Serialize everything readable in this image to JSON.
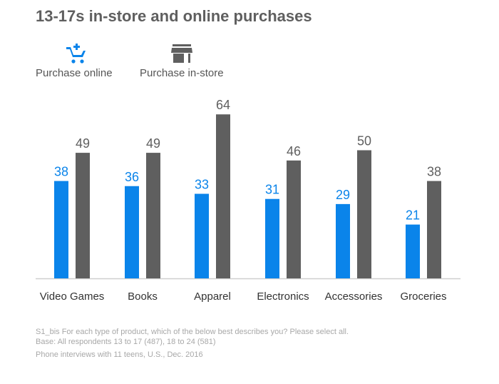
{
  "title": "13-17s in-store and online purchases",
  "legend": [
    {
      "label": "Purchase online",
      "icon": "cart-add-icon",
      "color": "#0a84ea"
    },
    {
      "label": "Purchase in-store",
      "icon": "storefront-icon",
      "color": "#5f5f5f"
    }
  ],
  "chart_data": {
    "type": "bar",
    "title": "13-17s in-store and online purchases",
    "categories": [
      "Video Games",
      "Books",
      "Apparel",
      "Electronics",
      "Accessories",
      "Groceries"
    ],
    "series": [
      {
        "name": "Purchase online",
        "values": [
          38,
          36,
          33,
          31,
          29,
          21
        ],
        "color": "#0a84ea"
      },
      {
        "name": "Purchase in-store",
        "values": [
          49,
          49,
          64,
          46,
          50,
          38
        ],
        "color": "#5f5f5f"
      }
    ],
    "ylim": [
      0,
      100
    ],
    "grid": false,
    "legend_position": "top-left",
    "data_labels": true
  },
  "footnotes": {
    "question": "S1_bis For each type of product, which of the below best describes you? Please select all.",
    "base": "Base: All respondents 13 to 17 (487), 18 to 24 (581)",
    "source": "Phone interviews with 11 teens, U.S., Dec. 2016"
  }
}
